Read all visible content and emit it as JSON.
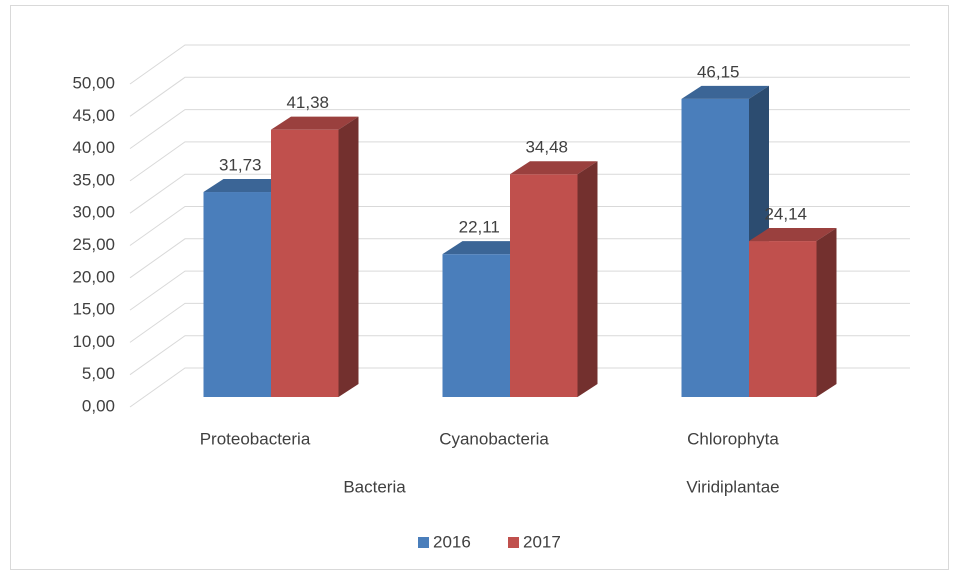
{
  "chart_data": {
    "type": "bar3d",
    "categories": [
      "Proteobacteria",
      "Cyanobacteria",
      "Chlorophyta"
    ],
    "groups": [
      {
        "name": "Bacteria",
        "count": 2
      },
      {
        "name": "Viridiplantae",
        "count": 1
      }
    ],
    "series": [
      {
        "name": "2016",
        "color": "#4a7ebb",
        "values": [
          31.73,
          22.11,
          46.15
        ],
        "value_labels": [
          "31,73",
          "22,11",
          "46,15"
        ]
      },
      {
        "name": "2017",
        "color": "#c0504d",
        "values": [
          41.38,
          34.48,
          24.14
        ],
        "value_labels": [
          "41,38",
          "34,48",
          "24,14"
        ]
      }
    ],
    "ylim": [
      0,
      50
    ],
    "yticks": [
      {
        "value": 0,
        "label": "0,00"
      },
      {
        "value": 5,
        "label": "5,00"
      },
      {
        "value": 10,
        "label": "10,00"
      },
      {
        "value": 15,
        "label": "15,00"
      },
      {
        "value": 20,
        "label": "20,00"
      },
      {
        "value": 25,
        "label": "25,00"
      },
      {
        "value": 30,
        "label": "30,00"
      },
      {
        "value": 35,
        "label": "35,00"
      },
      {
        "value": 40,
        "label": "40,00"
      },
      {
        "value": 45,
        "label": "45,00"
      },
      {
        "value": 50,
        "label": "50,00"
      }
    ],
    "grid": true,
    "legend": "bottom"
  }
}
